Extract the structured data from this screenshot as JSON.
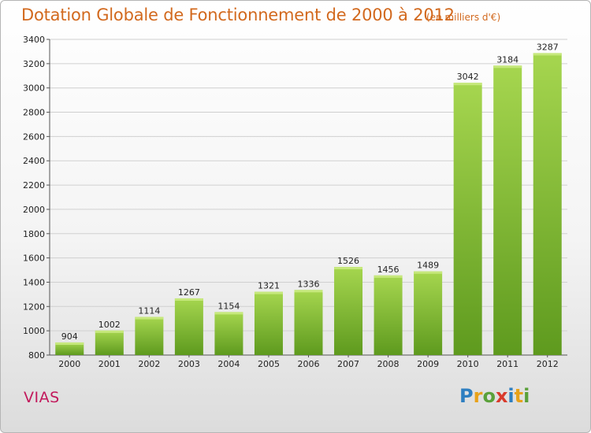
{
  "chart_data": {
    "type": "bar",
    "title": "Dotation Globale de Fonctionnement de 2000 à 2012",
    "subtitle": "(en milliers d'€)",
    "categories": [
      "2000",
      "2001",
      "2002",
      "2003",
      "2004",
      "2005",
      "2006",
      "2007",
      "2008",
      "2009",
      "2010",
      "2011",
      "2012"
    ],
    "values": [
      904,
      1002,
      1114,
      1267,
      1154,
      1321,
      1336,
      1526,
      1456,
      1489,
      3042,
      3184,
      3287
    ],
    "ylim": [
      800,
      3400
    ],
    "yticks": [
      800,
      1000,
      1200,
      1400,
      1600,
      1800,
      2000,
      2200,
      2400,
      2600,
      2800,
      3000,
      3200,
      3400
    ],
    "grid": true,
    "bar_color": "#7cb82f",
    "bar_color_light": "#a6d64f",
    "bar_color_dark": "#5e9a1e"
  },
  "commune": "VIAS",
  "logo": {
    "letters": [
      "P",
      "r",
      "o",
      "x",
      "i",
      "t",
      "i"
    ],
    "colors": [
      "#2e7fc1",
      "#e8a21a",
      "#5aa13a",
      "#d93a2b",
      "#2e7fc1",
      "#e8a21a",
      "#5aa13a"
    ]
  },
  "colors": {
    "title": "#d2691e",
    "commune": "#c2185b"
  }
}
